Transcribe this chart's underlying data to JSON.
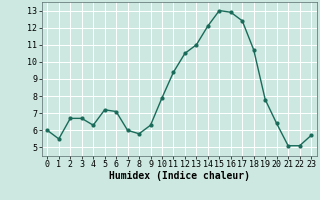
{
  "x": [
    0,
    1,
    2,
    3,
    4,
    5,
    6,
    7,
    8,
    9,
    10,
    11,
    12,
    13,
    14,
    15,
    16,
    17,
    18,
    19,
    20,
    21,
    22,
    23
  ],
  "y": [
    6.0,
    5.5,
    6.7,
    6.7,
    6.3,
    7.2,
    7.1,
    6.0,
    5.8,
    6.3,
    7.9,
    9.4,
    10.5,
    11.0,
    12.1,
    13.0,
    12.9,
    12.4,
    10.7,
    7.8,
    6.4,
    5.1,
    5.1,
    5.7
  ],
  "line_color": "#1a6b5a",
  "marker": "o",
  "marker_size": 2.0,
  "linewidth": 1.0,
  "bg_color": "#cce8e0",
  "grid_color": "#ffffff",
  "xlabel": "Humidex (Indice chaleur)",
  "xlabel_fontsize": 7,
  "tick_fontsize": 6,
  "ylim": [
    4.5,
    13.5
  ],
  "xlim": [
    -0.5,
    23.5
  ],
  "yticks": [
    5,
    6,
    7,
    8,
    9,
    10,
    11,
    12,
    13
  ],
  "xticks": [
    0,
    1,
    2,
    3,
    4,
    5,
    6,
    7,
    8,
    9,
    10,
    11,
    12,
    13,
    14,
    15,
    16,
    17,
    18,
    19,
    20,
    21,
    22,
    23
  ]
}
